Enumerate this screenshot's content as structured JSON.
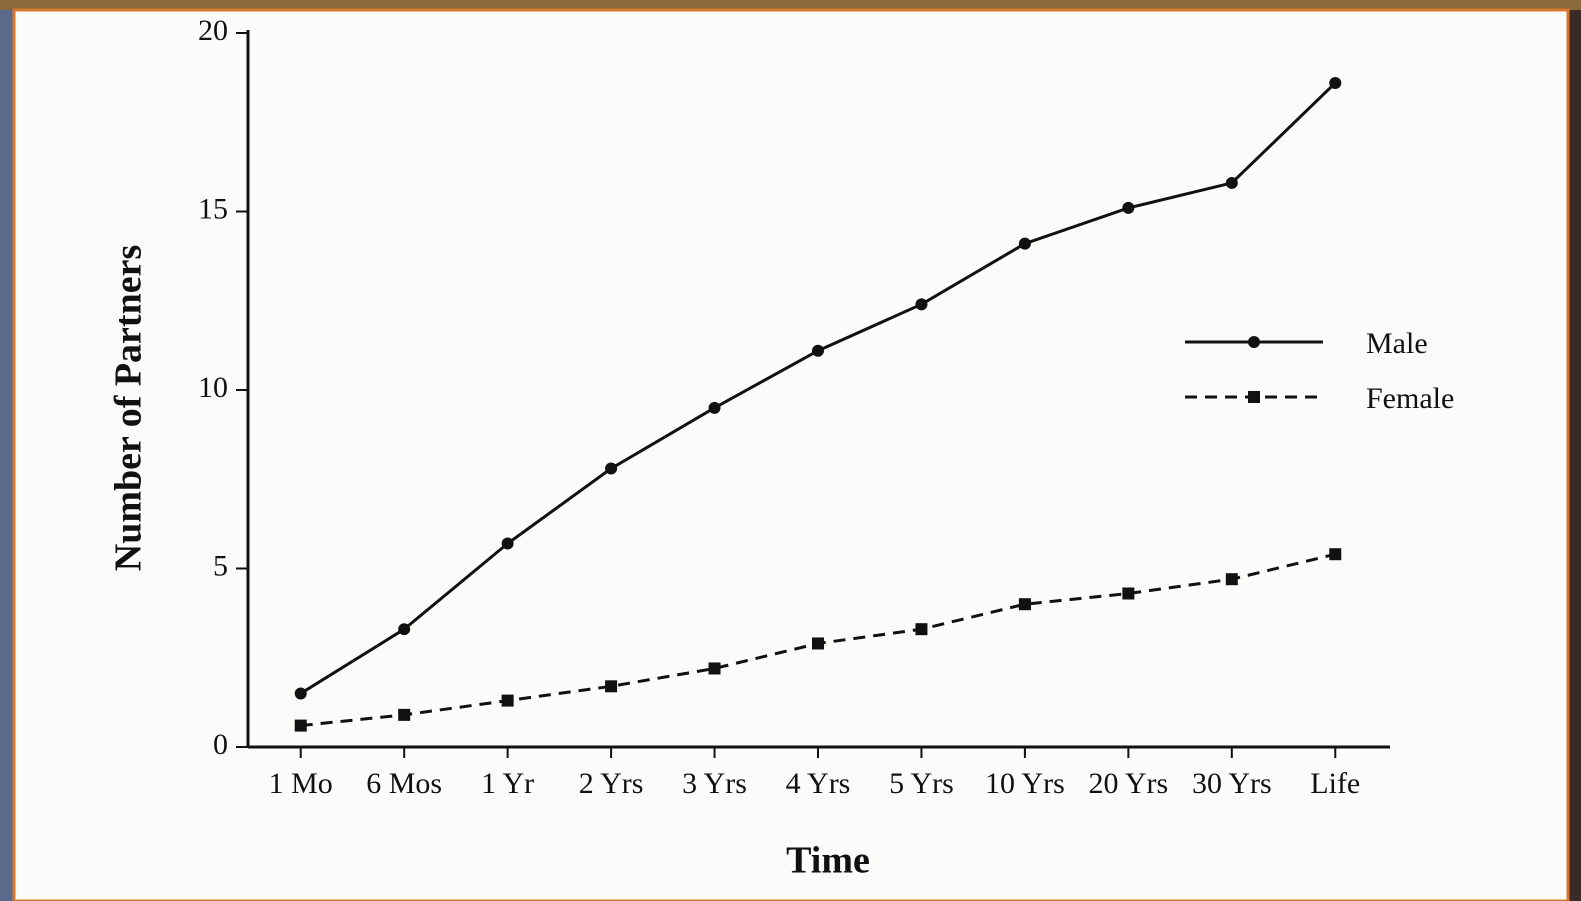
{
  "chart_data": {
    "type": "line",
    "xlabel": "Time",
    "ylabel": "Number of Partners",
    "categories": [
      "1 Mo",
      "6 Mos",
      "1 Yr",
      "2 Yrs",
      "3 Yrs",
      "4 Yrs",
      "5 Yrs",
      "10 Yrs",
      "20 Yrs",
      "30 Yrs",
      "Life"
    ],
    "series": [
      {
        "name": "Male",
        "color": "#111111",
        "marker": "circle",
        "dashed": false,
        "values": [
          1.5,
          3.3,
          5.7,
          7.8,
          9.5,
          11.1,
          12.4,
          14.1,
          15.1,
          15.8,
          18.6
        ]
      },
      {
        "name": "Female",
        "color": "#111111",
        "marker": "square",
        "dashed": true,
        "values": [
          0.6,
          0.9,
          1.3,
          1.7,
          2.2,
          2.9,
          3.3,
          4.0,
          4.3,
          4.7,
          5.4
        ]
      }
    ],
    "ylim": [
      0,
      20
    ],
    "yticks": [
      0,
      5,
      10,
      15,
      20
    ],
    "grid": false,
    "legend": "right"
  }
}
